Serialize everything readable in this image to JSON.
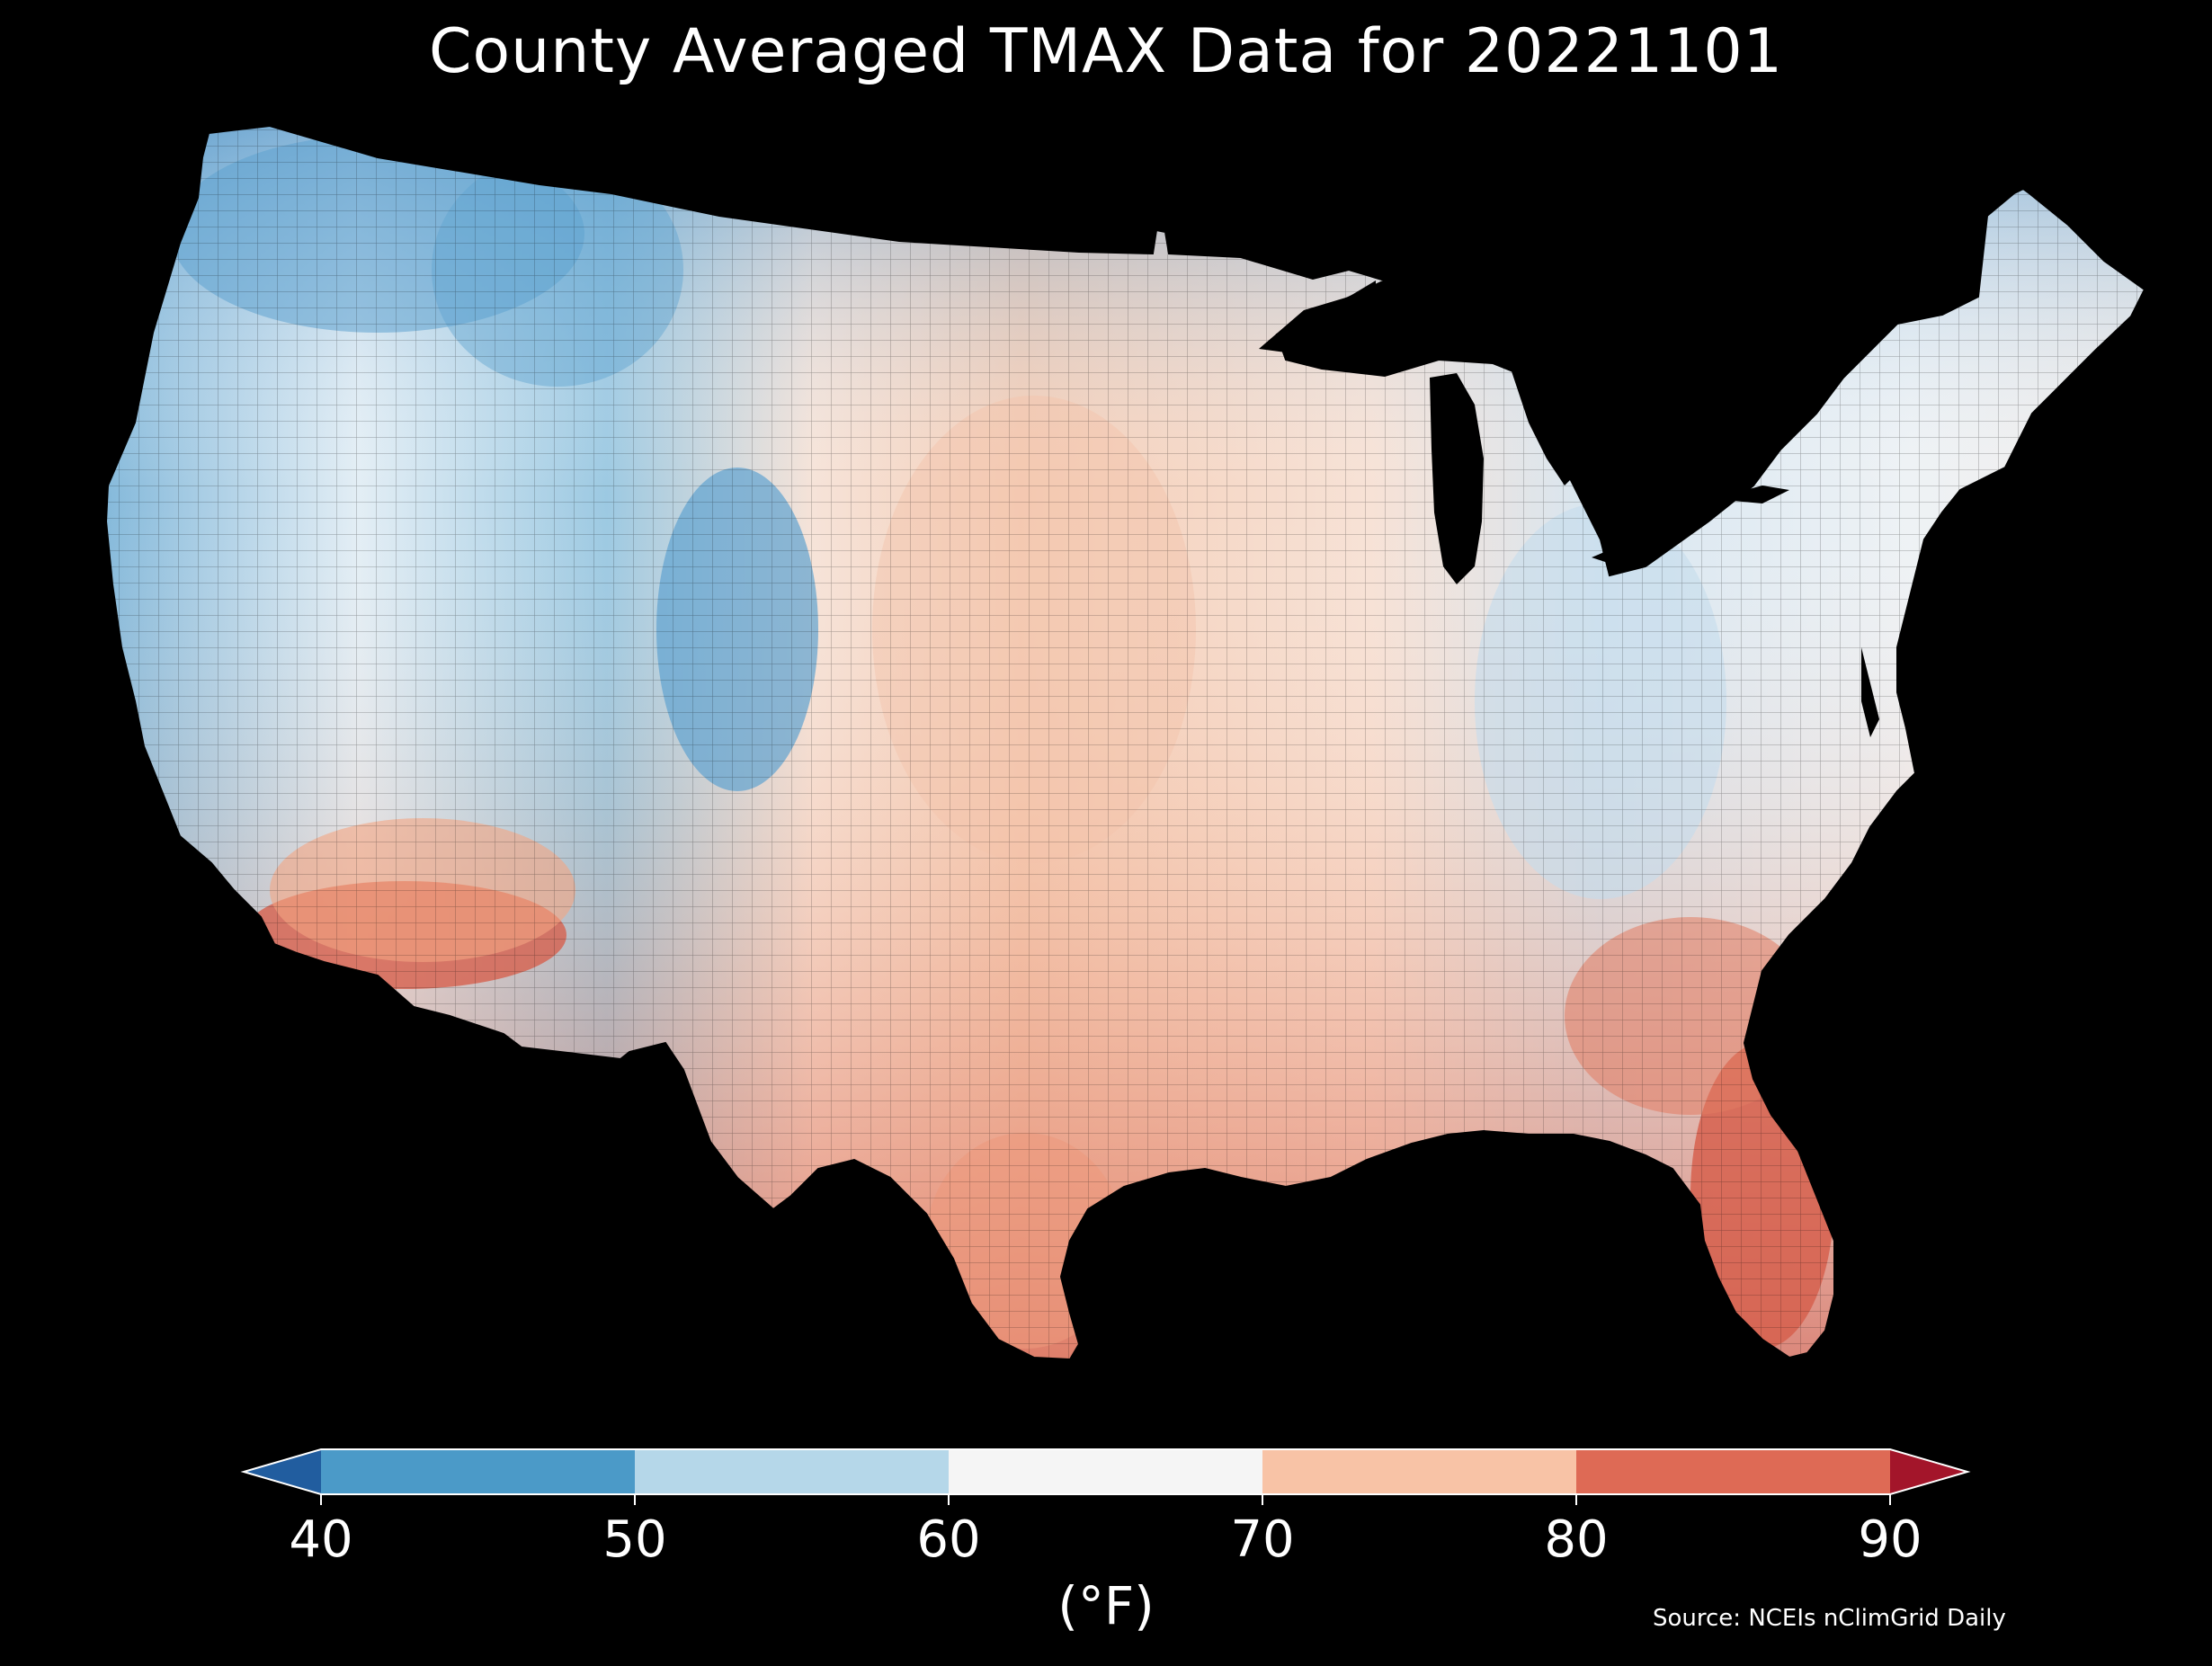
{
  "title": "County Averaged TMAX Data for 20221101",
  "source": "Source: NCEIs nClimGrid Daily",
  "colorbar": {
    "unit_label": "(°F)",
    "ticks": [
      "40",
      "50",
      "60",
      "70",
      "80",
      "90"
    ],
    "bins": [
      {
        "range": [
          40,
          50
        ],
        "color": "#4b9ac8"
      },
      {
        "range": [
          50,
          60
        ],
        "color": "#b5d7e9"
      },
      {
        "range": [
          60,
          70
        ],
        "color": "#f5f5f5"
      },
      {
        "range": [
          70,
          80
        ],
        "color": "#f8c3a6"
      },
      {
        "range": [
          80,
          90
        ],
        "color": "#de6a55"
      }
    ],
    "under_color": "#215d9f",
    "over_color": "#a3152a",
    "extend": "both"
  },
  "map": {
    "region": "Contiguous United States",
    "units": "county",
    "background_color": "#000000",
    "boundary_color": "#000000"
  }
}
